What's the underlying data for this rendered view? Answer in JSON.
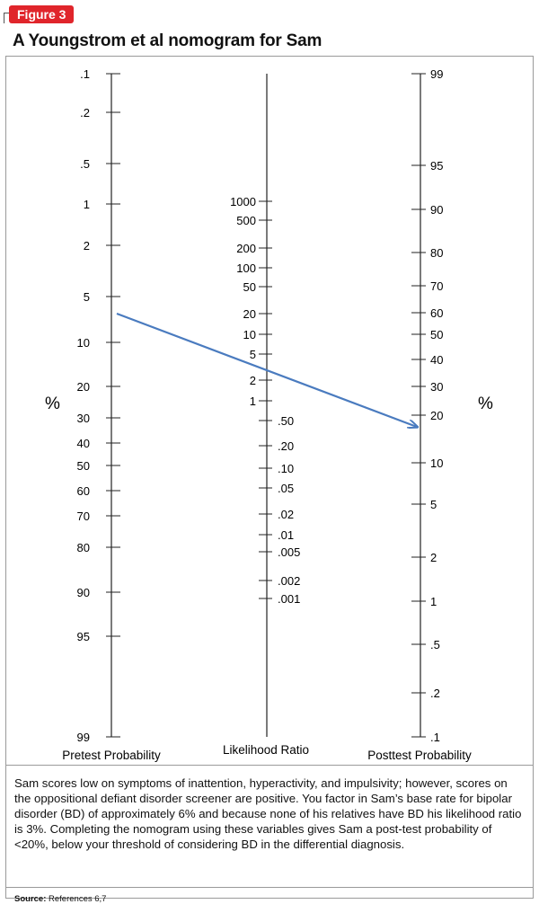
{
  "figure_label": "Figure 3",
  "title": "A Youngstrom et al nomogram for Sam",
  "left_axis": {
    "name": "Pretest Probability",
    "unit": "%",
    "ticks": [
      ".1",
      ".2",
      ".5",
      "1",
      "2",
      "5",
      "10",
      "20",
      "30",
      "40",
      "50",
      "60",
      "70",
      "80",
      "90",
      "95",
      "99"
    ]
  },
  "middle_axis": {
    "name": "Likelihood Ratio",
    "ticks_left": [
      "1000",
      "500",
      "200",
      "100",
      "50",
      "20",
      "10",
      "5",
      "2",
      "1"
    ],
    "ticks_right": [
      ".50",
      ".20",
      ".10",
      ".05",
      ".02",
      ".01",
      ".005",
      ".002",
      ".001"
    ]
  },
  "right_axis": {
    "name": "Posttest Probability",
    "unit": "%",
    "ticks": [
      "99",
      "95",
      "90",
      "80",
      "70",
      "60",
      "50",
      "40",
      "30",
      "20",
      "10",
      "5",
      "2",
      "1",
      ".5",
      ".2",
      ".1"
    ]
  },
  "arrow": {
    "from_pretest_percent": 6,
    "through_likelihood_ratio": 3,
    "to_posttest_percent": 16,
    "color": "#4a7bbf"
  },
  "caption": "Sam scores low on symptoms of inattention, hyperactivity, and impulsivity; however, scores on the oppositional defiant disorder screener are positive. You factor in Sam’s base rate for bipolar disorder (BD) of approximately 6% and because none of his relatives have BD his likelihood ratio is 3%. Completing the nomogram using these variables gives Sam a post-test probability of <20%, below your threshold of considering BD in the differential diagnosis.",
  "source": {
    "label": "Source:",
    "text": "References 6,7"
  }
}
